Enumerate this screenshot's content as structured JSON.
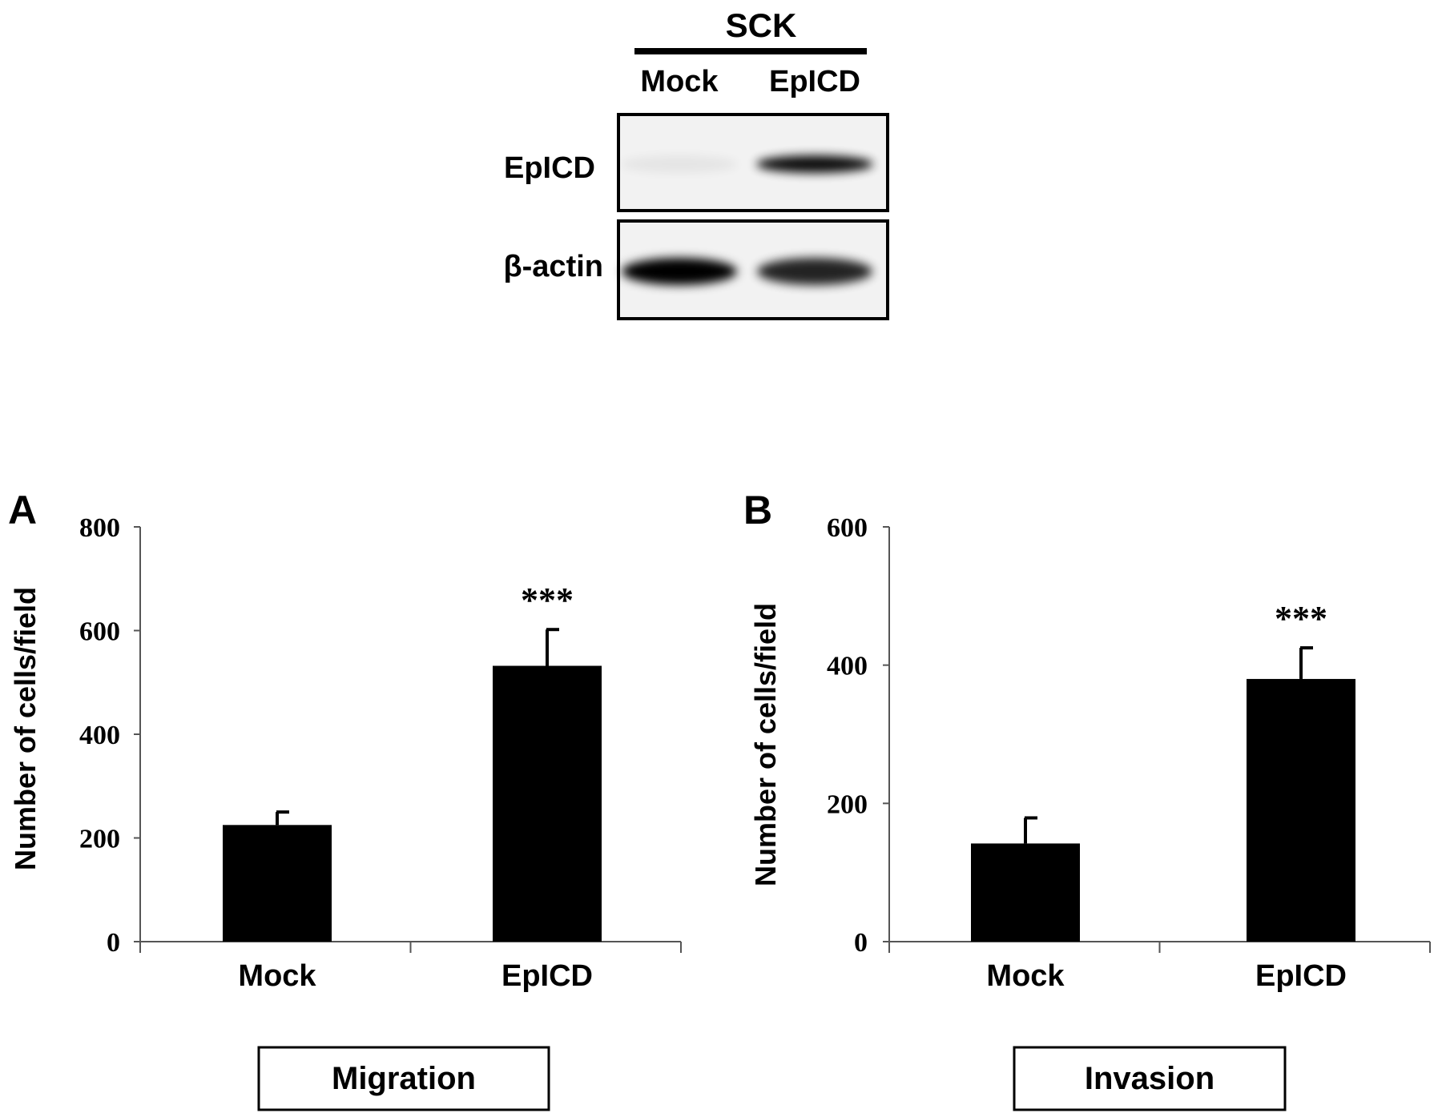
{
  "blot": {
    "group_label": "SCK",
    "lanes": [
      "Mock",
      "EpICD"
    ],
    "rows": [
      {
        "label": "EpICD",
        "band_intensity": [
          0.05,
          0.95
        ]
      },
      {
        "label": "β-actin",
        "band_intensity": [
          1.0,
          0.85
        ]
      }
    ]
  },
  "chart_data": [
    {
      "type": "bar",
      "panel": "A",
      "categories": [
        "Mock",
        "EpICD"
      ],
      "values": [
        225,
        532
      ],
      "errors": [
        25,
        70
      ],
      "significance": [
        "",
        "***"
      ],
      "ylabel": "Number of cells/field",
      "yticks": [
        0,
        200,
        400,
        600,
        800
      ],
      "ylim": [
        0,
        800
      ],
      "caption": "Migration",
      "bar_color": "#000000"
    },
    {
      "type": "bar",
      "panel": "B",
      "categories": [
        "Mock",
        "EpICD"
      ],
      "values": [
        142,
        380
      ],
      "errors": [
        37,
        45
      ],
      "significance": [
        "",
        "***"
      ],
      "ylabel": "Number of cells/field",
      "yticks": [
        0,
        200,
        400,
        600
      ],
      "ylim": [
        0,
        600
      ],
      "caption": "Invasion",
      "bar_color": "#000000"
    }
  ]
}
